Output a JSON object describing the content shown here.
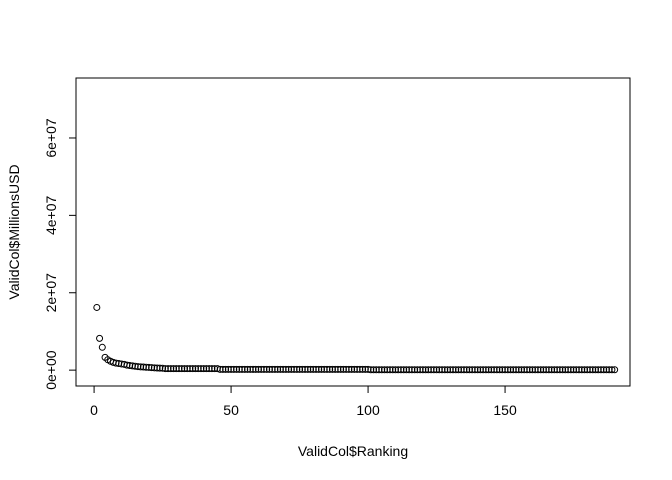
{
  "chart_data": {
    "type": "scatter",
    "xlabel": "ValidCol$Ranking",
    "ylabel": "ValidCol$MillionsUSD",
    "x": [
      1,
      2,
      3,
      4,
      5,
      6,
      7,
      8,
      9,
      10,
      11,
      12,
      13,
      14,
      15,
      16,
      17,
      18,
      19,
      20,
      21,
      22,
      23,
      24,
      25,
      26,
      27,
      28,
      29,
      30,
      31,
      32,
      33,
      34,
      35,
      36,
      37,
      38,
      39,
      40,
      41,
      42,
      43,
      44,
      45,
      46,
      47,
      48,
      49,
      50,
      51,
      52,
      53,
      54,
      55,
      56,
      57,
      58,
      59,
      60,
      61,
      62,
      63,
      64,
      65,
      66,
      67,
      68,
      69,
      70,
      71,
      72,
      73,
      74,
      75,
      76,
      77,
      78,
      79,
      80,
      81,
      82,
      83,
      84,
      85,
      86,
      87,
      88,
      89,
      90,
      91,
      92,
      93,
      94,
      95,
      96,
      97,
      98,
      99,
      100,
      101,
      102,
      103,
      104,
      105,
      106,
      107,
      108,
      109,
      110,
      111,
      112,
      113,
      114,
      115,
      116,
      117,
      118,
      119,
      120,
      121,
      122,
      123,
      124,
      125,
      126,
      127,
      128,
      129,
      130,
      131,
      132,
      133,
      134,
      135,
      136,
      137,
      138,
      139,
      140,
      141,
      142,
      143,
      144,
      145,
      146,
      147,
      148,
      149,
      150,
      151,
      152,
      153,
      154,
      155,
      156,
      157,
      158,
      159,
      160,
      161,
      162,
      163,
      164,
      165,
      166,
      167,
      168,
      169,
      170,
      171,
      172,
      173,
      174,
      175,
      176,
      177,
      178,
      179,
      180,
      181,
      182,
      183,
      184,
      185,
      186,
      187,
      188,
      189,
      190
    ],
    "values": [
      16200000,
      8200000,
      5900000,
      3300000,
      2700000,
      2300000,
      2000000,
      1800000,
      1700000,
      1600000,
      1500000,
      1300000,
      1200000,
      1100000,
      1000000,
      900000,
      850000,
      800000,
      750000,
      700000,
      650000,
      600000,
      560000,
      520000,
      500000,
      400000,
      400000,
      400000,
      400000,
      400000,
      400000,
      400000,
      400000,
      400000,
      400000,
      400000,
      400000,
      400000,
      400000,
      400000,
      400000,
      400000,
      400000,
      400000,
      400000,
      200000,
      200000,
      200000,
      200000,
      200000,
      200000,
      200000,
      200000,
      200000,
      200000,
      200000,
      200000,
      200000,
      200000,
      200000,
      200000,
      200000,
      200000,
      200000,
      200000,
      200000,
      200000,
      200000,
      200000,
      200000,
      200000,
      200000,
      200000,
      200000,
      200000,
      200000,
      200000,
      200000,
      200000,
      200000,
      200000,
      200000,
      200000,
      200000,
      200000,
      200000,
      200000,
      200000,
      200000,
      200000,
      200000,
      200000,
      200000,
      200000,
      200000,
      200000,
      200000,
      200000,
      200000,
      200000,
      100000,
      100000,
      100000,
      100000,
      100000,
      100000,
      100000,
      100000,
      100000,
      100000,
      100000,
      100000,
      100000,
      100000,
      100000,
      100000,
      100000,
      100000,
      100000,
      100000,
      100000,
      100000,
      100000,
      100000,
      100000,
      100000,
      100000,
      100000,
      100000,
      100000,
      100000,
      100000,
      100000,
      100000,
      100000,
      100000,
      100000,
      100000,
      100000,
      100000,
      100000,
      100000,
      100000,
      100000,
      100000,
      100000,
      100000,
      100000,
      100000,
      100000,
      100000,
      100000,
      100000,
      100000,
      100000,
      100000,
      100000,
      100000,
      100000,
      100000,
      100000,
      100000,
      100000,
      100000,
      100000,
      100000,
      100000,
      100000,
      100000,
      100000,
      100000,
      100000,
      100000,
      100000,
      100000,
      100000,
      100000,
      100000,
      100000,
      100000,
      100000,
      100000,
      100000,
      100000,
      100000,
      100000,
      100000,
      100000,
      100000,
      100000
    ],
    "color": "#000000",
    "xlim": [
      -6.6,
      195.6
    ],
    "xticks": [
      0,
      50,
      100,
      150
    ],
    "ylim": [
      -4100000,
      75500000
    ],
    "yticks": [
      {
        "value": 0,
        "label": "0e+00"
      },
      {
        "value": 20000000,
        "label": "2e+07"
      },
      {
        "value": 40000000,
        "label": "4e+07"
      },
      {
        "value": 60000000,
        "label": "6e+07"
      }
    ]
  }
}
